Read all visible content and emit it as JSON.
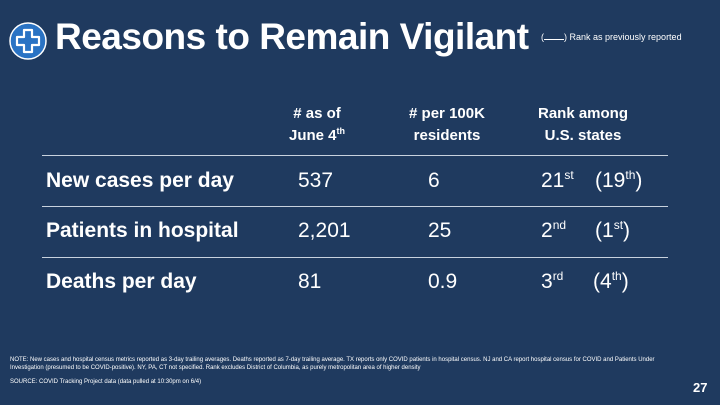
{
  "title": "Reasons to Remain Vigilant",
  "legend": {
    "open": "(",
    "close": ")",
    "text": "Rank as previously reported"
  },
  "columns": {
    "count": {
      "line1": "# as of",
      "line2": "June 4",
      "line2_sup": "th"
    },
    "per100k": {
      "line1": "# per 100K",
      "line2": "residents"
    },
    "rank": {
      "line1": "Rank among",
      "line2": "U.S. states"
    }
  },
  "rows": [
    {
      "label": "New cases per day",
      "count": "537",
      "per100k": "6",
      "rank": "21",
      "rank_sup": "st",
      "prev": "(19",
      "prev_sup": "th",
      "prev_close": ")"
    },
    {
      "label": "Patients in hospital",
      "count": "2,201",
      "per100k": "25",
      "rank": "2",
      "rank_sup": "nd",
      "prev": "(1",
      "prev_sup": "st",
      "prev_close": ")"
    },
    {
      "label": "Deaths per day",
      "count": "81",
      "per100k": "0.9",
      "rank": "3",
      "rank_sup": "rd",
      "prev": "(4",
      "prev_sup": "th",
      "prev_close": ")"
    }
  ],
  "note": "NOTE:  New cases and hospital census metrics reported as 3-day trailing averages.  Deaths reported as 7-day trailing average. TX reports only COVID patients in hospital census.  NJ and CA report hospital census for COVID and Patients Under Investigation (presumed to be COVID-positive). NY, PA, CT not specified.  Rank excludes District of Columbia, as purely metropolitan area of higher density",
  "source": "SOURCE: COVID Tracking Project data (data pulled at 10:30pm on 6/4)",
  "page_number": "27",
  "colors": {
    "background": "#1f3a5f",
    "logo": "#2a73c4",
    "text": "#ffffff"
  },
  "icons": {
    "logo": "medical-cross-icon"
  }
}
